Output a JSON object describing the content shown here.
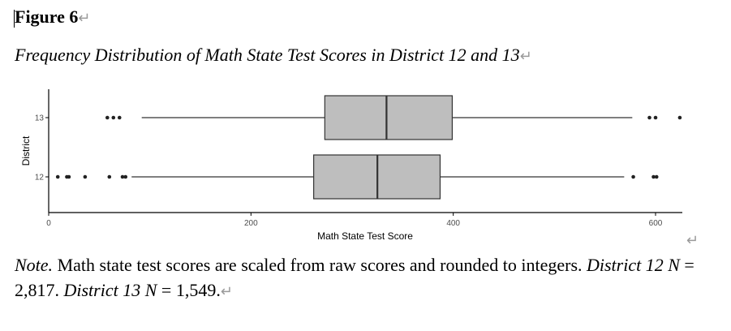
{
  "figure": {
    "label": "Figure 6",
    "caption": "Frequency Distribution of Math State Test Scores in District 12 and 13",
    "return_mark": "↵"
  },
  "note": {
    "label": "Note.",
    "text_1": " Math state test scores are scaled from raw scores and rounded to integers. ",
    "italic_1": "District 12 N",
    "text_2": " = 2,817. ",
    "italic_2": "District 13 N",
    "text_3": " = 1,549.",
    "return_mark": "↵"
  },
  "stray_return_mark": "↵",
  "chart_data": {
    "type": "boxplot",
    "orientation": "horizontal",
    "xlabel": "Math State Test Score",
    "ylabel": "District",
    "xlim": [
      0,
      625
    ],
    "xticks": [
      0,
      200,
      400,
      600
    ],
    "yticks": [
      "12",
      "13"
    ],
    "grid": false,
    "box_color": "#bebebe",
    "series": [
      {
        "name": "13",
        "whisker_low": 92,
        "q1": 273,
        "median": 334,
        "q3": 399,
        "whisker_high": 577,
        "outliers": [
          58,
          64,
          70,
          594,
          600,
          624
        ]
      },
      {
        "name": "12",
        "whisker_low": 82,
        "q1": 262,
        "median": 325,
        "q3": 387,
        "whisker_high": 569,
        "outliers": [
          9,
          18,
          20,
          36,
          60,
          73,
          76,
          578,
          598,
          601
        ]
      }
    ]
  }
}
